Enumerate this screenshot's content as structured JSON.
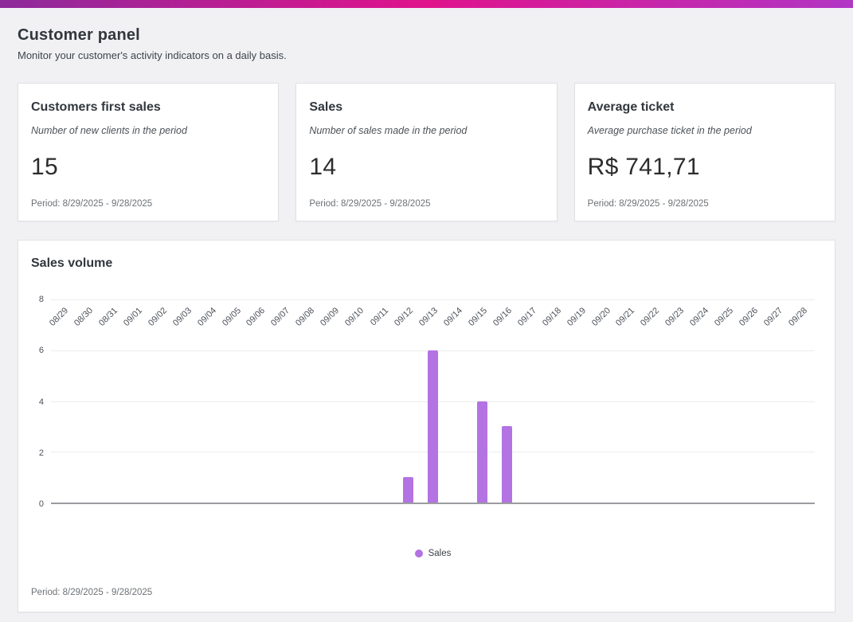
{
  "page": {
    "title": "Customer panel",
    "subtitle": "Monitor your customer's activity indicators on a daily basis."
  },
  "colors": {
    "topbar_gradient_left": "#8e2a9b",
    "topbar_gradient_mid": "#e0138c",
    "topbar_gradient_right": "#b136c4",
    "bar_fill": "#b373e2"
  },
  "stat_cards": [
    {
      "title": "Customers first sales",
      "description": "Number of new clients in the period",
      "value": "15",
      "period": "Period: 8/29/2025 - 9/28/2025"
    },
    {
      "title": "Sales",
      "description": "Number of sales made in the period",
      "value": "14",
      "period": "Period: 8/29/2025 - 9/28/2025"
    },
    {
      "title": "Average ticket",
      "description": "Average purchase ticket in the period",
      "value": "R$ 741,71",
      "period": "Period: 8/29/2025 - 9/28/2025"
    }
  ],
  "chart_card": {
    "title": "Sales volume",
    "period": "Period: 8/29/2025 - 9/28/2025"
  },
  "chart_data": {
    "type": "bar",
    "title": "Sales volume",
    "series_name": "Sales",
    "categories": [
      "08/29",
      "08/30",
      "08/31",
      "09/01",
      "09/02",
      "09/03",
      "09/04",
      "09/05",
      "09/06",
      "09/07",
      "09/08",
      "09/09",
      "09/10",
      "09/11",
      "09/12",
      "09/13",
      "09/14",
      "09/15",
      "09/16",
      "09/17",
      "09/18",
      "09/19",
      "09/20",
      "09/21",
      "09/22",
      "09/23",
      "09/24",
      "09/25",
      "09/26",
      "09/27",
      "09/28"
    ],
    "values": [
      0,
      0,
      0,
      0,
      0,
      0,
      0,
      0,
      0,
      0,
      0,
      0,
      0,
      0,
      1,
      6,
      0,
      4,
      3,
      0,
      0,
      0,
      0,
      0,
      0,
      0,
      0,
      0,
      0,
      0,
      0
    ],
    "xlabel": "",
    "ylabel": "",
    "ylim": [
      0,
      8
    ],
    "yticks": [
      0,
      2,
      4,
      6,
      8
    ],
    "grid": true,
    "legend_position": "bottom",
    "bar_color": "#b373e2",
    "x_tick_rotation": -45
  }
}
